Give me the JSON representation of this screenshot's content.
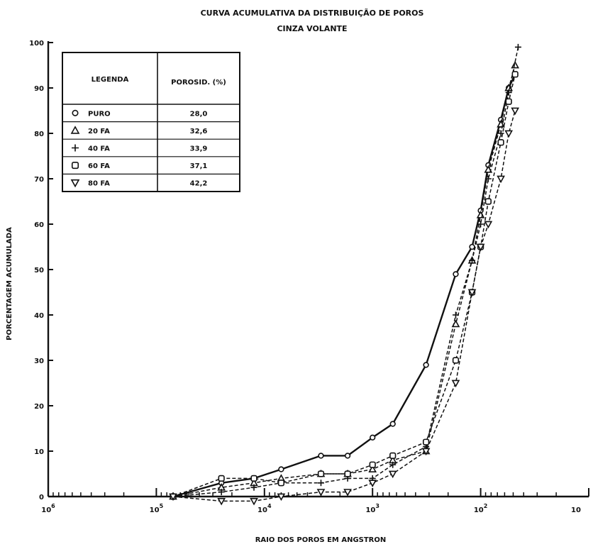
{
  "chart_data": {
    "type": "line",
    "title": "CURVA ACUMULATIVA DA DISTRIBUIÇÃO DE POROS",
    "subtitle": "CINZA VOLANTE",
    "xlabel": "RAIO DOS POROS EM ANGSTRON",
    "ylabel": "PORCENTAGEM ACUMULADA",
    "x_scale": "log",
    "x_reversed": true,
    "xlim": [
      1000000,
      10
    ],
    "ylim": [
      0,
      100
    ],
    "x_ticks": [
      {
        "value": 1000000,
        "base": "10",
        "exp": "6"
      },
      {
        "value": 100000,
        "base": "10",
        "exp": "5"
      },
      {
        "value": 10000,
        "base": "10",
        "exp": "4"
      },
      {
        "value": 1000,
        "base": "10",
        "exp": "3"
      },
      {
        "value": 100,
        "base": "10",
        "exp": "2"
      },
      {
        "value": 10,
        "base": "10",
        "exp": ""
      }
    ],
    "y_ticks": [
      "0",
      "10",
      "20",
      "30",
      "40",
      "50",
      "60",
      "70",
      "80",
      "90",
      "100"
    ],
    "legend": {
      "placement": "top-left",
      "header_series": "LEGENDA",
      "header_value": "POROSID. (%)"
    },
    "series": [
      {
        "name": "PURO",
        "marker": "circle",
        "line": "solid",
        "porosity": "28,0",
        "x": [
          70000,
          25000,
          12500,
          7000,
          3000,
          1700,
          1000,
          650,
          320,
          170,
          120,
          100,
          85,
          65,
          55,
          48
        ],
        "y": [
          0,
          3,
          4,
          6,
          9,
          9,
          13,
          16,
          29,
          49,
          55,
          63,
          73,
          83,
          90,
          93
        ]
      },
      {
        "name": "20 FA",
        "marker": "triangle",
        "line": "dashed",
        "porosity": "32,6",
        "x": [
          70000,
          25000,
          12500,
          7000,
          3000,
          1700,
          1000,
          650,
          320,
          170,
          120,
          100,
          85,
          65,
          55,
          48
        ],
        "y": [
          0,
          2,
          3,
          4,
          5,
          5,
          6,
          8,
          10,
          38,
          52,
          62,
          72,
          82,
          90,
          95
        ]
      },
      {
        "name": "40 FA",
        "marker": "plus",
        "line": "dashed",
        "porosity": "33,9",
        "x": [
          70000,
          25000,
          12500,
          7000,
          3000,
          1700,
          1000,
          650,
          320,
          170,
          120,
          100,
          85,
          65,
          55,
          45
        ],
        "y": [
          0,
          1,
          2,
          3,
          3,
          4,
          4,
          7,
          11,
          40,
          52,
          60,
          70,
          80,
          89,
          99
        ]
      },
      {
        "name": "60 FA",
        "marker": "square",
        "line": "dashed",
        "porosity": "37,1",
        "x": [
          70000,
          25000,
          12500,
          7000,
          3000,
          1700,
          1000,
          650,
          320,
          170,
          120,
          100,
          85,
          65,
          55,
          48
        ],
        "y": [
          0,
          4,
          4,
          3,
          5,
          5,
          7,
          9,
          12,
          30,
          45,
          55,
          65,
          78,
          87,
          93
        ]
      },
      {
        "name": "80 FA",
        "marker": "triangle-down",
        "line": "dashed",
        "porosity": "42,2",
        "x": [
          70000,
          25000,
          12500,
          7000,
          3000,
          1700,
          1000,
          650,
          320,
          170,
          120,
          100,
          85,
          65,
          55,
          48
        ],
        "y": [
          0,
          -1,
          -1,
          0,
          1,
          1,
          3,
          5,
          10,
          25,
          45,
          55,
          60,
          70,
          80,
          85
        ]
      }
    ]
  }
}
